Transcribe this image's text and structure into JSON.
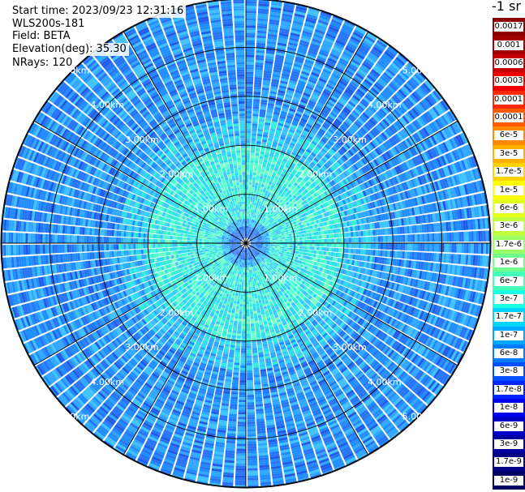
{
  "header": {
    "start_time": "Start time: 2023/09/23 12:31:16",
    "device": "WLS200s-181",
    "field": "Field: BETA",
    "elevation": "Elevation(deg): 35.30",
    "nrays": "NRays: 120"
  },
  "colorbar": {
    "title": "-1 sr",
    "labels": [
      "0.0017",
      "0.001",
      "0.0006",
      "0.0003",
      "0.00017",
      "0.0001",
      "6e-5",
      "3e-5",
      "1.7e-5",
      "1e-5",
      "6e-6",
      "3e-6",
      "1.7e-6",
      "1e-6",
      "6e-7",
      "3e-7",
      "1.7e-7",
      "1e-7",
      "6e-8",
      "3e-8",
      "1.7e-8",
      "1e-8",
      "6e-9",
      "3e-9",
      "1.7e-9",
      "1e-9"
    ],
    "colors": [
      "#8b0000",
      "#a00000",
      "#c40000",
      "#ee0000",
      "#ff2a00",
      "#ff5a00",
      "#ff8a00",
      "#ffb000",
      "#ffd200",
      "#ffff00",
      "#e6ff1a",
      "#bfff40",
      "#99ff66",
      "#70ff8f",
      "#45ffba",
      "#1affe6",
      "#00d4ff",
      "#00a8ff",
      "#007cff",
      "#0050ff",
      "#0024ff",
      "#0000f0",
      "#0000c8",
      "#0000a0",
      "#000080",
      "#000060"
    ]
  },
  "chart_data": {
    "type": "heatmap",
    "projection": "polar",
    "field": "BETA",
    "elevation_deg": 35.3,
    "n_rays": 120,
    "range_unit": "km",
    "range_rings_km": [
      1,
      2,
      3,
      4,
      5
    ],
    "ring_labels": [
      "1.00km",
      "2.00km",
      "3.00km",
      "4.00km",
      "5.00km"
    ],
    "radial_lines_deg": [
      0,
      30,
      60,
      90,
      120,
      150,
      180,
      210,
      240,
      270,
      300,
      330
    ],
    "max_range_km": 5.0,
    "value_scale": "log",
    "value_range": [
      1e-09,
      0.0017
    ],
    "field_pattern": {
      "near_range_km": [
        0.5,
        2.0
      ],
      "near_range_value": 1e-07,
      "far_range_value": 1e-08
    }
  }
}
